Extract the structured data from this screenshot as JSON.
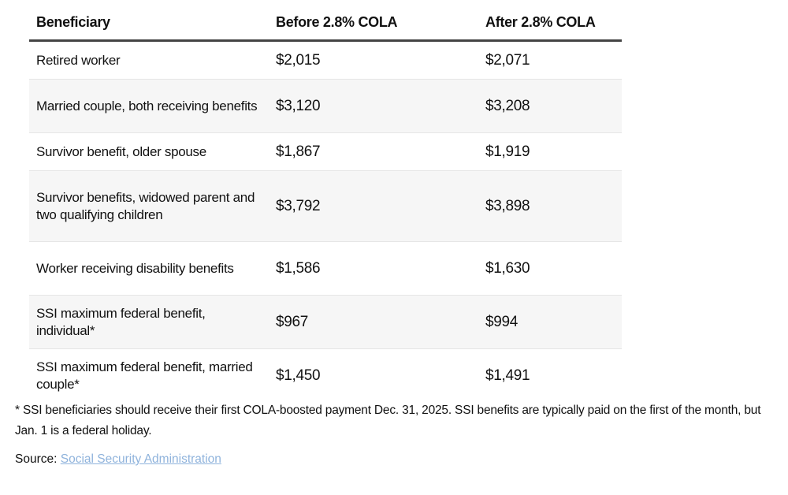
{
  "table": {
    "headers": [
      "Beneficiary",
      "Before 2.8% COLA",
      "After 2.8% COLA"
    ],
    "rows": [
      {
        "beneficiary": "Retired worker",
        "before": "$2,015",
        "after": "$2,071"
      },
      {
        "beneficiary": "Married couple, both receiving benefits",
        "before": "$3,120",
        "after": "$3,208"
      },
      {
        "beneficiary": "Survivor benefit, older spouse",
        "before": "$1,867",
        "after": "$1,919"
      },
      {
        "beneficiary": "Survivor benefits, widowed parent and two qualifying children",
        "before": "$3,792",
        "after": "$3,898"
      },
      {
        "beneficiary": "Worker receiving disability benefits",
        "before": "$1,586",
        "after": "$1,630"
      },
      {
        "beneficiary": "SSI maximum federal benefit, individual*",
        "before": "$967",
        "after": "$994"
      },
      {
        "beneficiary": "SSI maximum federal benefit, married couple*",
        "before": "$1,450",
        "after": "$1,491"
      }
    ]
  },
  "footnote": "* SSI beneficiaries should receive their first COLA-boosted payment Dec. 31, 2025. SSI benefits are typically paid on the first of the month, but Jan. 1 is a federal holiday.",
  "source": {
    "label": "Source: ",
    "link_text": "Social Security Administration",
    "link_color": "#8fb3dc"
  }
}
